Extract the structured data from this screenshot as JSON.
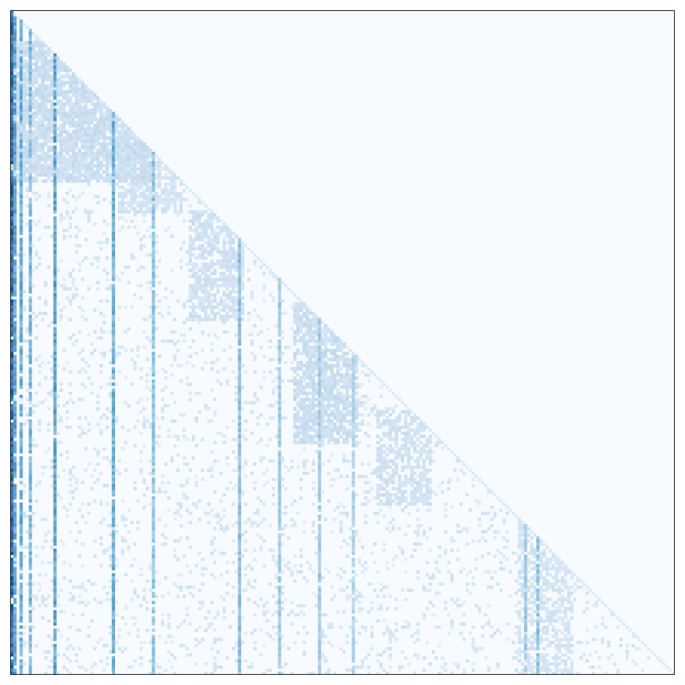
{
  "chart_data": {
    "type": "heatmap",
    "title": "",
    "xlabel": "",
    "ylabel": "",
    "n_rows": 216,
    "n_cols": 216,
    "value_range": [
      0,
      1
    ],
    "structure": "lower-triangular",
    "axes_ticks": "none",
    "colormap": "Blues",
    "colormap_stops": [
      "#f7fbff",
      "#deebf7",
      "#c6dbef",
      "#9ecae1",
      "#6baed6",
      "#4292c6",
      "#2171b5",
      "#08519c"
    ],
    "background_color": "#f7fbff",
    "frame_color": "#000000",
    "diagonal_value": 0.15,
    "strong_columns": [
      {
        "col": 0,
        "value": 0.85,
        "density": 0.95
      },
      {
        "col": 1,
        "value": 0.6,
        "density": 0.85
      },
      {
        "col": 3,
        "value": 0.55,
        "density": 0.85
      },
      {
        "col": 6,
        "value": 0.5,
        "density": 0.85
      },
      {
        "col": 14,
        "value": 0.6,
        "density": 0.95
      },
      {
        "col": 33,
        "value": 0.55,
        "density": 0.95
      },
      {
        "col": 46,
        "value": 0.45,
        "density": 0.9
      },
      {
        "col": 74,
        "value": 0.45,
        "density": 0.95
      },
      {
        "col": 87,
        "value": 0.4,
        "density": 0.9
      },
      {
        "col": 100,
        "value": 0.4,
        "density": 0.9
      },
      {
        "col": 111,
        "value": 0.35,
        "density": 0.85
      },
      {
        "col": 167,
        "value": 0.4,
        "density": 0.9
      },
      {
        "col": 171,
        "value": 0.45,
        "density": 0.9
      }
    ],
    "dense_blocks": [
      {
        "rows": [
          10,
          55
        ],
        "cols": [
          0,
          45
        ],
        "value": 0.25,
        "density": 0.85
      },
      {
        "rows": [
          30,
          65
        ],
        "cols": [
          35,
          55
        ],
        "value": 0.2,
        "density": 0.7
      },
      {
        "rows": [
          65,
          100
        ],
        "cols": [
          58,
          75
        ],
        "value": 0.22,
        "density": 0.7
      },
      {
        "rows": [
          95,
          140
        ],
        "cols": [
          92,
          112
        ],
        "value": 0.25,
        "density": 0.75
      },
      {
        "rows": [
          130,
          160
        ],
        "cols": [
          119,
          136
        ],
        "value": 0.22,
        "density": 0.6
      },
      {
        "rows": [
          160,
          215
        ],
        "cols": [
          165,
          182
        ],
        "value": 0.2,
        "density": 0.5
      }
    ],
    "background_sparsity": 0.12
  }
}
